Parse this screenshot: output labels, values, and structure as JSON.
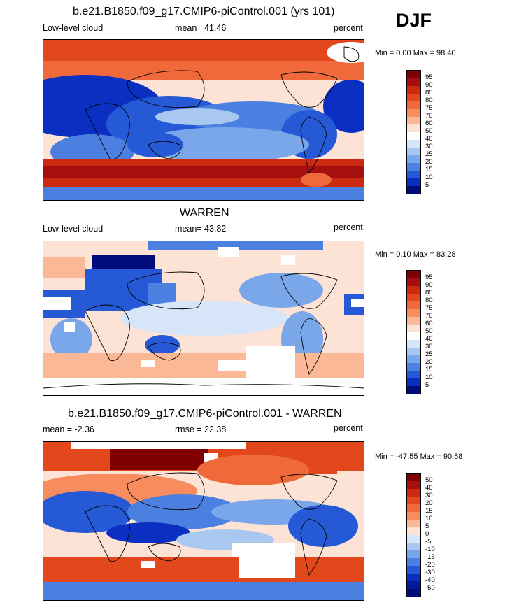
{
  "season": "DJF",
  "panels": [
    {
      "title": "b.e21.B1850.f09_g17.CMIP6-piControl.001 (yrs 101)",
      "left_label": "Low-level cloud",
      "center_label": "mean=  41.46",
      "right_label": "percent",
      "minmax": "Min =   0.00 Max =  98.40",
      "colorbar": {
        "labels": [
          "95",
          "90",
          "85",
          "80",
          "75",
          "70",
          "60",
          "50",
          "40",
          "30",
          "25",
          "20",
          "15",
          "10",
          "5"
        ]
      }
    },
    {
      "title": "WARREN",
      "left_label": "Low-level cloud",
      "center_label": "mean=  43.82",
      "right_label": "percent",
      "minmax": "Min =   0.10 Max =  83.28",
      "colorbar": {
        "labels": [
          "95",
          "90",
          "85",
          "80",
          "75",
          "70",
          "60",
          "50",
          "40",
          "30",
          "25",
          "20",
          "15",
          "10",
          "5"
        ]
      }
    },
    {
      "title": "b.e21.B1850.f09_g17.CMIP6-piControl.001 - WARREN",
      "left_label": "mean =  -2.36",
      "center_label": "rmse =  22.38",
      "right_label": "percent",
      "minmax": "Min = -47.55 Max =  90.58",
      "colorbar": {
        "labels": [
          "50",
          "40",
          "30",
          "20",
          "15",
          "10",
          "5",
          "0",
          "-5",
          "-10",
          "-15",
          "-20",
          "-30",
          "-40",
          "-50"
        ]
      }
    }
  ],
  "colors": {
    "colorbar": [
      "#7f0000",
      "#a50f0f",
      "#cc2a10",
      "#e3481c",
      "#f0693a",
      "#f78c5e",
      "#fbb896",
      "#fde3d6",
      "#ffffff",
      "#d7e5f8",
      "#a9c8f0",
      "#7aa6ea",
      "#4c80e0",
      "#2659d6",
      "#0b2fc0",
      "#001a99",
      "#000c7a"
    ]
  }
}
